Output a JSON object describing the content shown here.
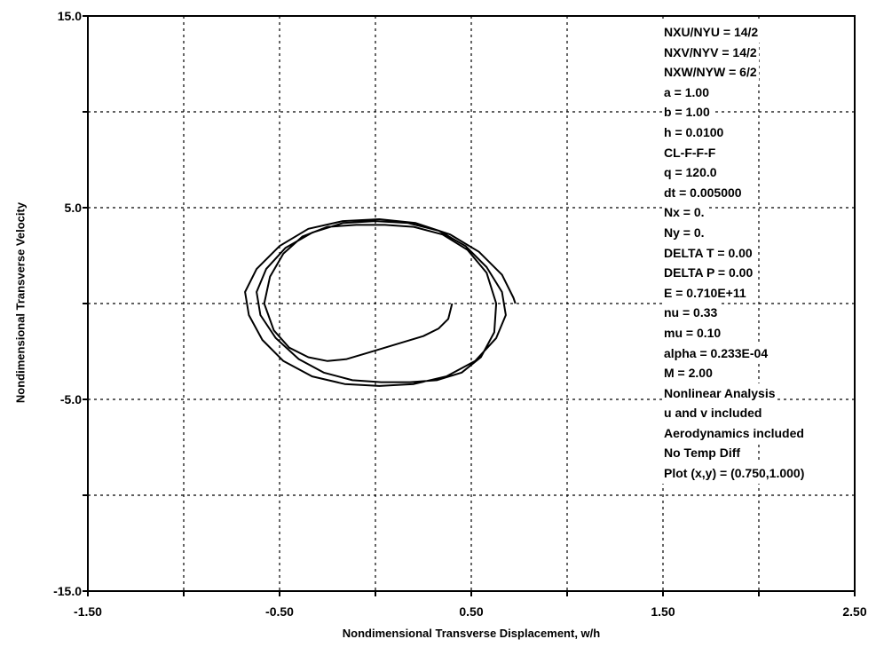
{
  "chart_data": {
    "type": "line",
    "xlabel": "Nondimensional Transverse Displacement, w/h",
    "ylabel": "Nondimensional Transverse Velocity",
    "xlim": [
      -1.5,
      2.5
    ],
    "ylim": [
      -15.0,
      15.0
    ],
    "xticks": [
      -1.5,
      -1.0,
      -0.5,
      0.0,
      0.5,
      1.0,
      1.5,
      2.0,
      2.5
    ],
    "xtick_labels": [
      "-1.50",
      "",
      "-0.50",
      "",
      "0.50",
      "",
      "1.50",
      "",
      "2.50"
    ],
    "yticks": [
      -15.0,
      -10.0,
      -5.0,
      0.0,
      5.0,
      10.0,
      15.0
    ],
    "ytick_labels": [
      "-15.0",
      "",
      "-5.0",
      "",
      "5.0",
      "",
      "15.0"
    ],
    "grid": true,
    "series": [
      {
        "values_note": "phase-plane trajectory (w/h, velocity)",
        "x": [
          0.4,
          0.38,
          0.33,
          0.25,
          0.15,
          0.05,
          -0.05,
          -0.15,
          -0.25,
          -0.35,
          -0.45,
          -0.53,
          -0.58,
          -0.55,
          -0.48,
          -0.38,
          -0.25,
          -0.1,
          0.05,
          0.2,
          0.35,
          0.48,
          0.58,
          0.63,
          0.62,
          0.55,
          0.45,
          0.32,
          0.18,
          0.03,
          -0.12,
          -0.27,
          -0.4,
          -0.52,
          -0.6,
          -0.62,
          -0.57,
          -0.47,
          -0.33,
          -0.17,
          0.0,
          0.17,
          0.33,
          0.47,
          0.58,
          0.66,
          0.68,
          0.63,
          0.52,
          0.37,
          0.2,
          0.02,
          -0.16,
          -0.33,
          -0.48,
          -0.59,
          -0.66,
          -0.68,
          -0.62,
          -0.5,
          -0.35,
          -0.17,
          0.02,
          0.21,
          0.39,
          0.54,
          0.66,
          0.72,
          0.73
        ],
        "y": [
          0.0,
          -0.8,
          -1.3,
          -1.7,
          -2.0,
          -2.3,
          -2.6,
          -2.9,
          -3.0,
          -2.8,
          -2.3,
          -1.4,
          0.0,
          1.4,
          2.6,
          3.5,
          4.0,
          4.1,
          4.1,
          4.0,
          3.6,
          2.8,
          1.6,
          0.0,
          -1.5,
          -2.8,
          -3.6,
          -4.0,
          -4.1,
          -4.1,
          -4.0,
          -3.6,
          -2.9,
          -1.8,
          -0.6,
          0.6,
          1.8,
          2.9,
          3.7,
          4.2,
          4.3,
          4.2,
          3.8,
          3.0,
          1.9,
          0.6,
          -0.6,
          -1.8,
          -3.0,
          -3.8,
          -4.2,
          -4.3,
          -4.2,
          -3.8,
          -3.0,
          -1.9,
          -0.6,
          0.6,
          1.8,
          3.0,
          3.9,
          4.3,
          4.4,
          4.2,
          3.6,
          2.7,
          1.5,
          0.3,
          0.0
        ]
      }
    ]
  },
  "annotations": [
    "NXU/NYU = 14/2",
    "NXV/NYV = 14/2",
    "NXW/NYW = 6/2",
    "a = 1.00",
    "b = 1.00",
    "h = 0.0100",
    "CL-F-F-F",
    "q = 120.0",
    "dt = 0.005000",
    "Nx = 0.",
    "Ny = 0.",
    "DELTA T = 0.00",
    "DELTA P = 0.00",
    "E = 0.710E+11",
    "nu = 0.33",
    "mu = 0.10",
    "alpha = 0.233E-04",
    "M = 2.00",
    "Nonlinear Analysis",
    "u and v included",
    "Aerodynamics included",
    "No Temp Diff",
    "Plot (x,y) = (0.750,1.000)"
  ]
}
